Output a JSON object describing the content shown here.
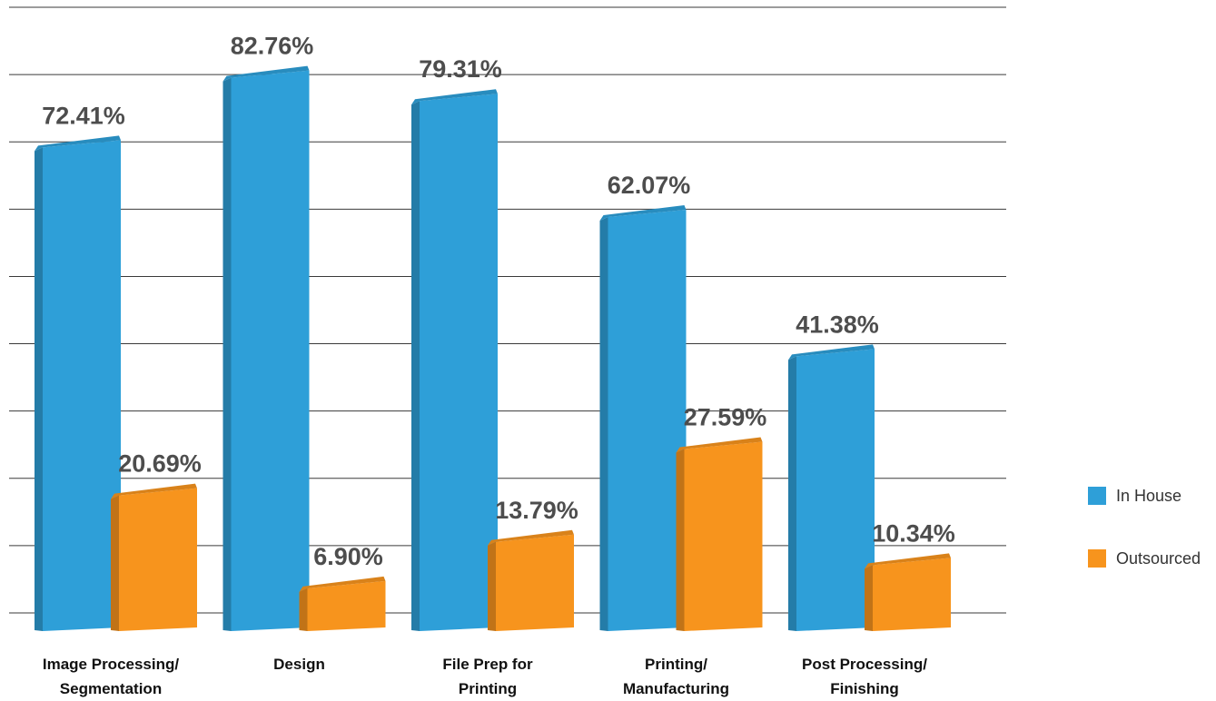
{
  "chart_data": {
    "type": "bar",
    "categories": [
      [
        "Image Processing/",
        "Segmentation"
      ],
      [
        "Design"
      ],
      [
        "File Prep for",
        "Printing"
      ],
      [
        "Printing/",
        "Manufacturing"
      ],
      [
        "Post Processing/",
        "Finishing"
      ]
    ],
    "series": [
      {
        "name": "In House",
        "color": "#2e9fd8",
        "values": [
          72.41,
          82.76,
          79.31,
          62.07,
          41.38
        ],
        "labels": [
          "72.41%",
          "82.76%",
          "79.31%",
          "62.07%",
          "41.38%"
        ]
      },
      {
        "name": "Outsourced",
        "color": "#f7941d",
        "values": [
          20.69,
          6.9,
          13.79,
          27.59,
          10.34
        ],
        "labels": [
          "20.69%",
          "6.90%",
          "13.79%",
          "27.59%",
          "10.34%"
        ]
      }
    ],
    "ylim": [
      0,
      90
    ],
    "gridlines": true,
    "legend": "right"
  }
}
